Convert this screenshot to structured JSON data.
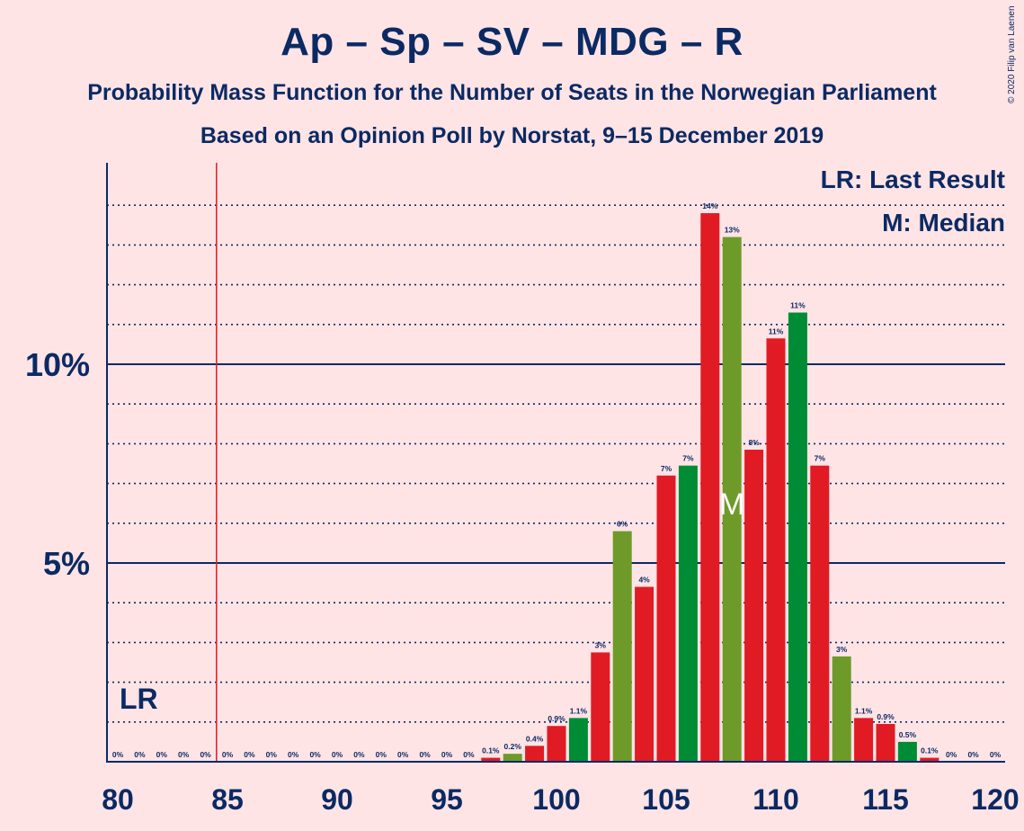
{
  "title": "Ap – Sp – SV – MDG – R",
  "subtitle_1": "Probability Mass Function for the Number of Seats in the Norwegian Parliament",
  "subtitle_2": "Based on an Opinion Poll by Norstat, 9–15 December 2019",
  "copyright": "© 2020 Filip van Laenen",
  "legend": {
    "last_result": "LR: Last Result",
    "median": "M: Median"
  },
  "markers": {
    "last_result_label": "LR",
    "last_result_seat": 85,
    "median_label": "M",
    "median_seat": 108
  },
  "colors": {
    "background": "#FFE4E6",
    "text": "#0B2A63",
    "red": "#E01B24",
    "olive": "#6E9A2A",
    "green": "#008C35",
    "last_result_line": "#E01B24"
  },
  "chart_data": {
    "type": "bar",
    "xlim": [
      80,
      120
    ],
    "ylim": [
      0,
      15
    ],
    "x_ticks": [
      "80",
      "85",
      "90",
      "95",
      "100",
      "105",
      "110",
      "115",
      "120"
    ],
    "y_ticks": [
      {
        "value": 5,
        "label": "5%"
      },
      {
        "value": 10,
        "label": "10%"
      }
    ],
    "grid": "dotted every 1%, solid at 5% and 10%",
    "x": [
      80,
      81,
      82,
      83,
      84,
      85,
      86,
      87,
      88,
      89,
      90,
      91,
      92,
      93,
      94,
      95,
      96,
      97,
      98,
      99,
      100,
      101,
      102,
      103,
      104,
      105,
      106,
      107,
      108,
      109,
      110,
      111,
      112,
      113,
      114,
      115,
      116,
      117,
      118,
      119,
      120
    ],
    "values": [
      0,
      0,
      0,
      0,
      0,
      0,
      0,
      0,
      0,
      0,
      0,
      0,
      0,
      0,
      0,
      0,
      0,
      0.1,
      0.2,
      0.4,
      0.9,
      1.1,
      2.75,
      5.8,
      4.4,
      7.2,
      7.45,
      13.8,
      13.2,
      7.85,
      10.65,
      11.3,
      7.45,
      2.65,
      1.1,
      0.95,
      0.5,
      0.1,
      0,
      0,
      0
    ],
    "data_labels": [
      "0%",
      "0%",
      "0%",
      "0%",
      "0%",
      "0%",
      "0%",
      "0%",
      "0%",
      "0%",
      "0%",
      "0%",
      "0%",
      "0%",
      "0%",
      "0%",
      "0%",
      "0.1%",
      "0.2%",
      "0.4%",
      "0.9%",
      "1.1%",
      "3%",
      "6%",
      "4%",
      "7%",
      "7%",
      "14%",
      "13%",
      "8%",
      "11%",
      "11%",
      "7%",
      "3%",
      "1.1%",
      "0.9%",
      "0.5%",
      "0.1%",
      "0%",
      "0%",
      "0%"
    ],
    "bar_colors": [
      "red",
      "red",
      "red",
      "red",
      "red",
      "red",
      "red",
      "red",
      "red",
      "red",
      "red",
      "red",
      "red",
      "red",
      "red",
      "red",
      "red",
      "red",
      "olive",
      "red",
      "red",
      "green",
      "red",
      "olive",
      "red",
      "red",
      "green",
      "red",
      "olive",
      "red",
      "red",
      "green",
      "red",
      "olive",
      "red",
      "red",
      "green",
      "red",
      "red",
      "red",
      "red"
    ]
  }
}
